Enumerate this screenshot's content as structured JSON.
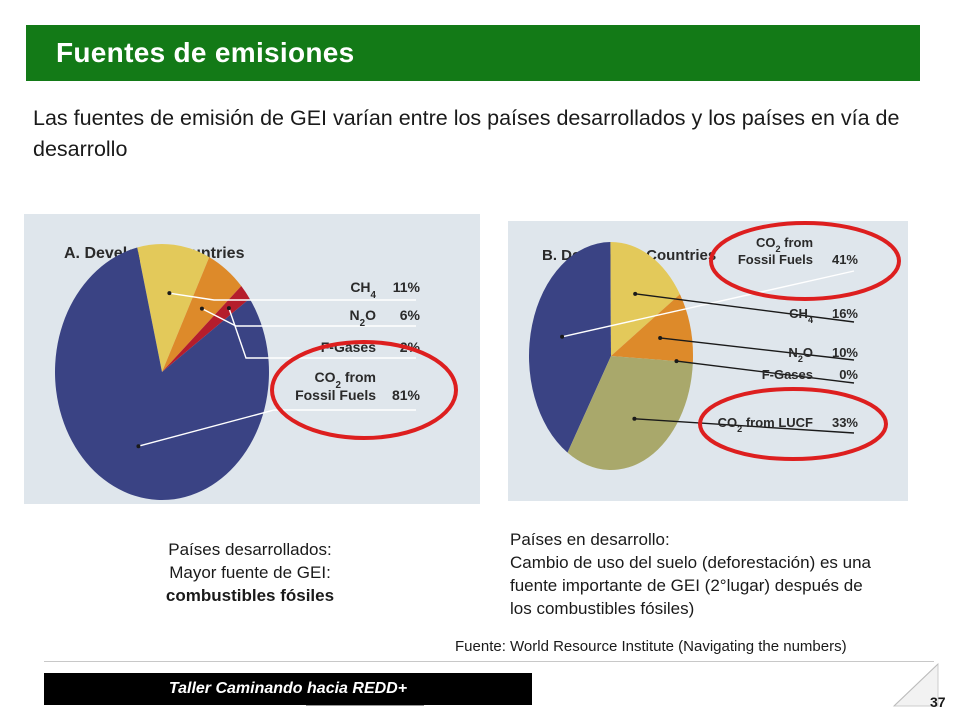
{
  "slide": {
    "title": "Fuentes de emisiones",
    "intro": "Las fuentes de emisión  de GEI varían entre los países desarrollados y los países en vía de desarrollo",
    "caption_left": {
      "line1": "Países desarrollados:",
      "line2": "Mayor fuente de GEI:",
      "line3": "combustibles fósiles"
    },
    "caption_right": {
      "line1": "Países en desarrollo:",
      "line2": "Cambio de uso del suelo (deforestación) es una",
      "line3": "fuente importante de GEI   (2°lugar) después de",
      "line4": "los combustibles fósiles)"
    },
    "source": "Fuente: World Resource Institute (Navigating the numbers)",
    "footer": "Taller Caminando hacia REDD+",
    "page_number": "37"
  },
  "colors": {
    "title_bar": "#137a17",
    "panel_bg": "#dfe6ec",
    "highlight_circle": "#dd1f1f"
  },
  "chart_data": [
    {
      "type": "pie",
      "title": "A.  Developed Countries",
      "slices": [
        {
          "label_main": "CH",
          "label_sub": "4",
          "label_rest": "",
          "value": 11,
          "value_label": "11%",
          "color": "#e3c95a"
        },
        {
          "label_main": "N",
          "label_sub": "2",
          "label_rest": "O",
          "value": 6,
          "value_label": "6%",
          "color": "#dd8a2a"
        },
        {
          "label_main": "F-Gases",
          "label_sub": "",
          "label_rest": "",
          "value": 2,
          "value_label": "2%",
          "color": "#b51d2c"
        },
        {
          "label_main": "CO",
          "label_sub": "2",
          "label_rest": " from",
          "label_line2": "Fossil Fuels",
          "value": 81,
          "value_label": "81%",
          "color": "#3a4384"
        }
      ],
      "highlighted": [
        "Fossil Fuels"
      ]
    },
    {
      "type": "pie",
      "title": "B.  Developing Countries",
      "slices": [
        {
          "label_main": "CO",
          "label_sub": "2",
          "label_rest": " from",
          "label_line2": "Fossil Fuels",
          "value": 41,
          "value_label": "41%",
          "color": "#3a4384"
        },
        {
          "label_main": "CH",
          "label_sub": "4",
          "label_rest": "",
          "value": 16,
          "value_label": "16%",
          "color": "#e3c95a"
        },
        {
          "label_main": "N",
          "label_sub": "2",
          "label_rest": "O",
          "value": 10,
          "value_label": "10%",
          "color": "#dd8a2a"
        },
        {
          "label_main": "F-Gases",
          "label_sub": "",
          "label_rest": "",
          "value": 0,
          "value_label": "0%",
          "color": "#b51d2c"
        },
        {
          "label_main": "CO",
          "label_sub": "2",
          "label_rest": " from LUCF",
          "value": 33,
          "value_label": "33%",
          "color": "#a9a86b"
        }
      ],
      "highlighted": [
        "Fossil Fuels",
        "LUCF"
      ]
    }
  ]
}
